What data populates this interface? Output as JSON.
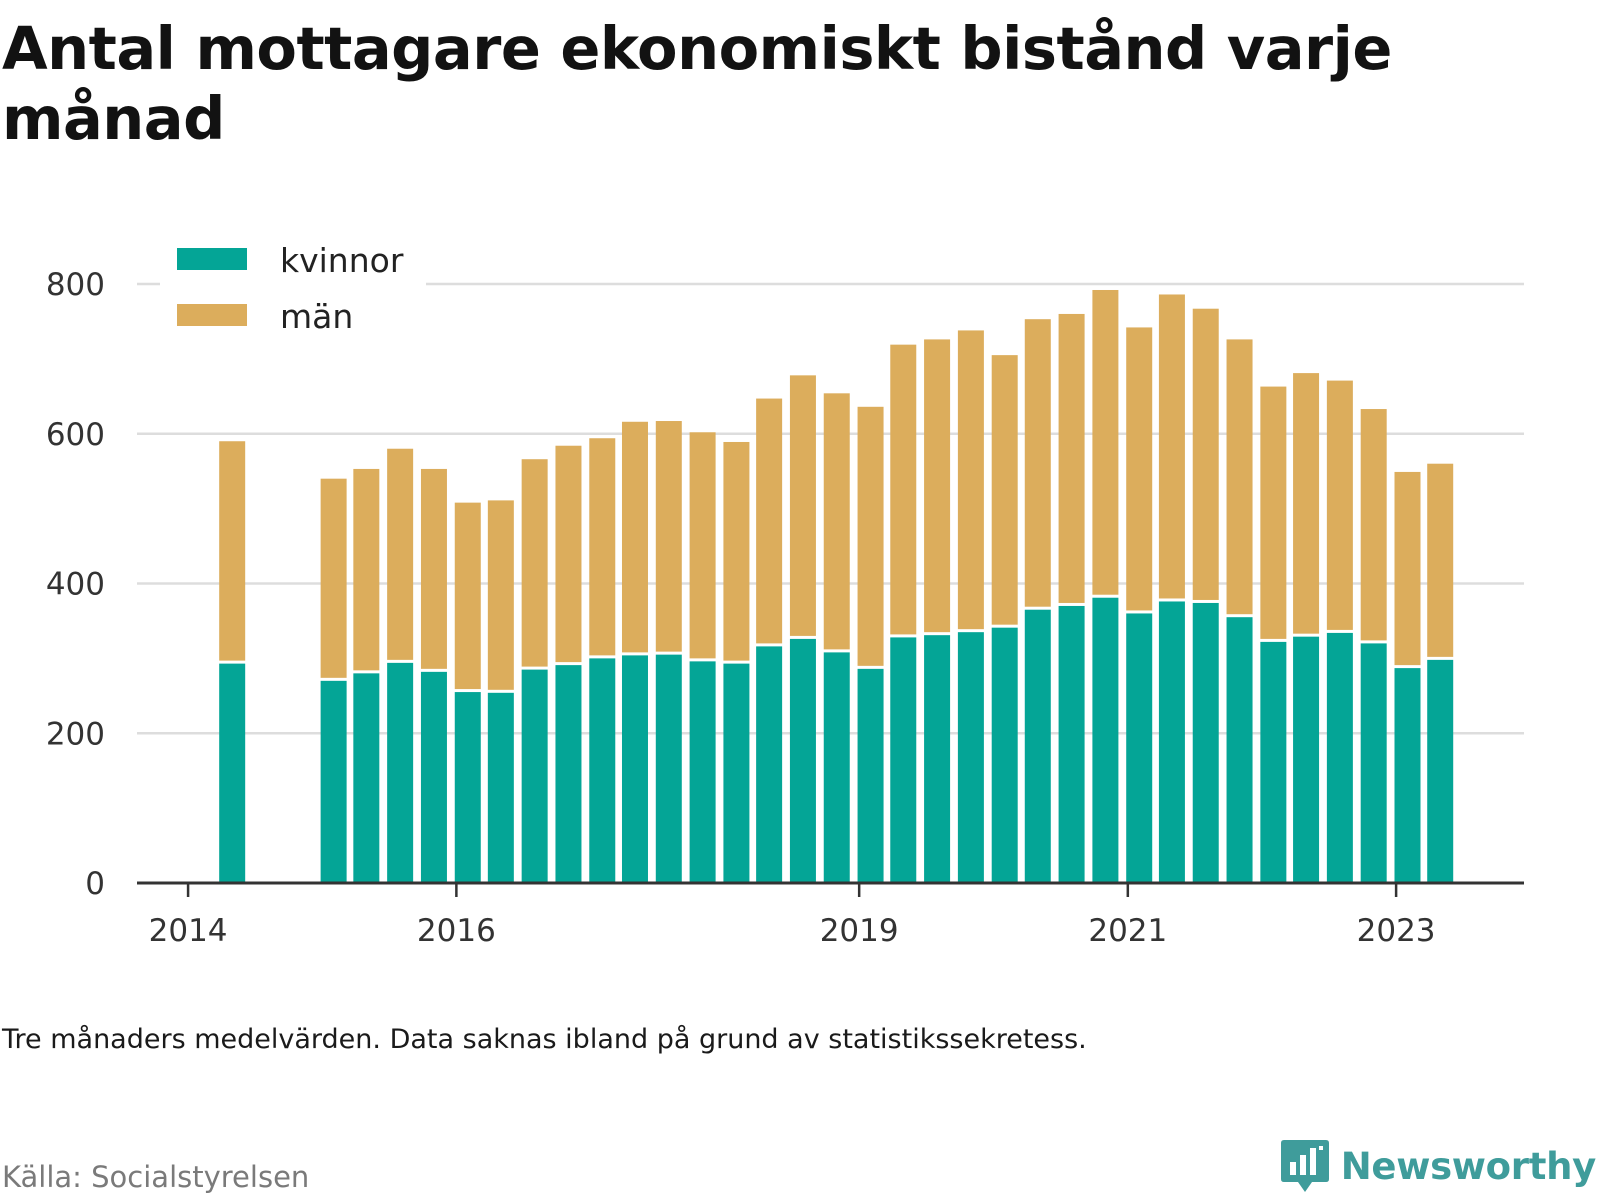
{
  "title": "Antal mottagare ekonomiskt bistånd varje månad",
  "note": "Tre månaders medelvärden. Data saknas ibland på grund av statistikssekretess.",
  "source": "Källa: Socialstyrelsen",
  "brand": {
    "name": "Newsworthy",
    "icon": "newsworthy-chart-bubble-icon"
  },
  "colors": {
    "kvinnor": "#04a596",
    "man": "#dcad5c",
    "grid": "#dddddd",
    "axis": "#333333"
  },
  "chart_data": {
    "type": "bar",
    "stacked": true,
    "title": "Antal mottagare ekonomiskt bistånd varje månad",
    "xlabel": "",
    "ylabel": "",
    "ylim": [
      0,
      800
    ],
    "yticks": [
      0,
      200,
      400,
      600,
      800
    ],
    "xticks": [
      "2014",
      "2016",
      "2019",
      "2021",
      "2023"
    ],
    "grid": true,
    "legend": "top-left",
    "x": [
      "2014-05",
      "2014-11",
      "2015-02",
      "2015-05",
      "2015-08",
      "2015-11",
      "2016-02",
      "2016-05",
      "2016-08",
      "2016-11",
      "2017-02",
      "2017-05",
      "2017-08",
      "2017-11",
      "2018-02",
      "2018-05",
      "2018-08",
      "2018-11",
      "2019-02",
      "2019-05",
      "2019-08",
      "2019-11",
      "2020-02",
      "2020-05",
      "2020-08",
      "2020-11",
      "2021-02",
      "2021-05",
      "2021-08",
      "2021-11",
      "2022-02",
      "2022-05",
      "2022-08",
      "2022-11",
      "2023-02",
      "2023-05"
    ],
    "series": [
      {
        "name": "kvinnor",
        "values": [
          293,
          null,
          270,
          280,
          294,
          282,
          255,
          254,
          285,
          291,
          300,
          304,
          305,
          296,
          293,
          316,
          326,
          308,
          286,
          328,
          331,
          335,
          341,
          365,
          370,
          381,
          360,
          376,
          374,
          355,
          322,
          329,
          334,
          320,
          287,
          298
        ]
      },
      {
        "name": "män",
        "values": [
          297,
          null,
          270,
          273,
          286,
          271,
          253,
          257,
          281,
          293,
          294,
          312,
          312,
          306,
          296,
          331,
          352,
          346,
          350,
          391,
          395,
          403,
          364,
          388,
          390,
          411,
          382,
          410,
          393,
          371,
          341,
          352,
          337,
          313,
          262,
          262
        ]
      }
    ]
  }
}
